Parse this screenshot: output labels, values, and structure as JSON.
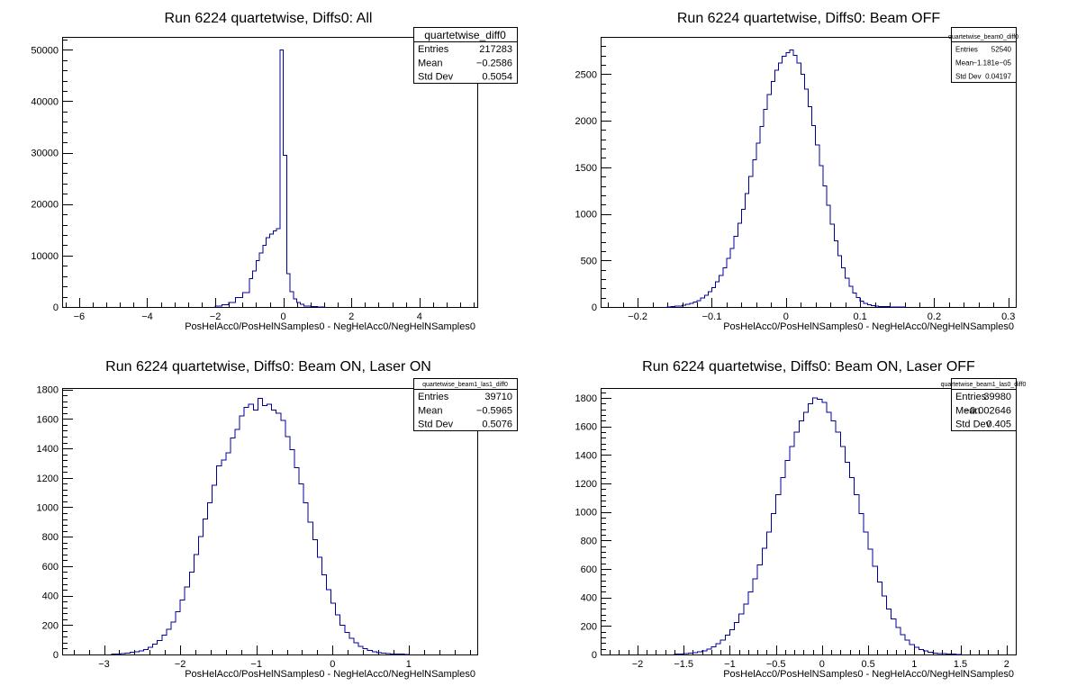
{
  "chart_data": [
    {
      "type": "histogram",
      "title": "Run 6224 quartetwise, Diffs0: All",
      "xlabel": "PosHelAcc0/PosHelNSamples0 - NegHelAcc0/NegHelNSamples0",
      "ylabel": "",
      "xlim": [
        -6.5,
        5.7
      ],
      "ylim": [
        0,
        52500
      ],
      "xticks": [
        -6,
        -4,
        -2,
        0,
        2,
        4
      ],
      "yticks": [
        0,
        10000,
        20000,
        30000,
        40000,
        50000
      ],
      "stats": {
        "name": "quartetwise_diff0",
        "entries": "217283",
        "mean": "−0.2586",
        "std_dev": "0.5054"
      },
      "bins": {
        "edges": [
          -2.0,
          -1.8,
          -1.6,
          -1.4,
          -1.2,
          -1.0,
          -0.9,
          -0.8,
          -0.7,
          -0.6,
          -0.5,
          -0.4,
          -0.3,
          -0.2,
          -0.1,
          0.0,
          0.1,
          0.2,
          0.3,
          0.4,
          0.5,
          0.6,
          0.8,
          1.0,
          1.2
        ],
        "counts": [
          150,
          400,
          900,
          1800,
          2800,
          5500,
          7000,
          9000,
          10500,
          12000,
          13500,
          14200,
          14800,
          15200,
          50000,
          29500,
          6500,
          3000,
          1600,
          900,
          500,
          200,
          80,
          30
        ]
      }
    },
    {
      "type": "histogram",
      "title": "Run 6224 quartetwise, Diffs0: Beam OFF",
      "xlabel": "PosHelAcc0/PosHelNSamples0 - NegHelAcc0/NegHelNSamples0",
      "ylabel": "",
      "xlim": [
        -0.25,
        0.31
      ],
      "ylim": [
        0,
        2900
      ],
      "xticks": [
        -0.2,
        -0.1,
        0,
        0.1,
        0.2,
        0.3
      ],
      "yticks": [
        0,
        500,
        1000,
        1500,
        2000,
        2500
      ],
      "stats": {
        "name": "quartetwise_beam0_diff0",
        "entries": "52540",
        "mean": "−1.181e−05",
        "std_dev": "0.04197"
      },
      "bins": {
        "lo": -0.16,
        "width": 0.005,
        "counts": [
          2,
          4,
          8,
          12,
          18,
          28,
          40,
          55,
          70,
          95,
          125,
          165,
          210,
          270,
          340,
          420,
          520,
          630,
          760,
          900,
          1050,
          1220,
          1400,
          1580,
          1760,
          1940,
          2120,
          2280,
          2420,
          2540,
          2620,
          2690,
          2730,
          2760,
          2700,
          2620,
          2500,
          2340,
          2150,
          1950,
          1740,
          1520,
          1300,
          1090,
          890,
          710,
          550,
          420,
          310,
          220,
          150,
          100,
          65,
          40,
          25,
          15,
          10,
          6,
          4,
          3,
          2,
          2,
          1,
          1
        ]
      }
    },
    {
      "type": "histogram",
      "title": "Run 6224 quartetwise, Diffs0: Beam ON, Laser ON",
      "xlabel": "PosHelAcc0/PosHelNSamples0 - NegHelAcc0/NegHelNSamples0",
      "ylabel": "",
      "xlim": [
        -3.55,
        1.9
      ],
      "ylim": [
        0,
        1810
      ],
      "xticks": [
        -3,
        -2,
        -1,
        0,
        1
      ],
      "yticks": [
        0,
        200,
        400,
        600,
        800,
        1000,
        1200,
        1400,
        1600,
        1800
      ],
      "stats": {
        "name": "quartetwise_beam1_las1_diff0",
        "entries": "39710",
        "mean": "−0.5965",
        "std_dev": "0.5076"
      },
      "bins": {
        "lo": -2.9,
        "width": 0.06,
        "counts": [
          2,
          4,
          6,
          10,
          14,
          18,
          25,
          35,
          50,
          70,
          95,
          130,
          170,
          220,
          290,
          370,
          460,
          560,
          680,
          800,
          920,
          1030,
          1150,
          1280,
          1320,
          1370,
          1470,
          1530,
          1620,
          1680,
          1700,
          1660,
          1740,
          1690,
          1700,
          1660,
          1640,
          1590,
          1480,
          1390,
          1270,
          1160,
          1030,
          900,
          780,
          660,
          540,
          440,
          350,
          270,
          200,
          150,
          110,
          80,
          55,
          40,
          28,
          18,
          12,
          8,
          5,
          4,
          3,
          2,
          1
        ]
      }
    },
    {
      "type": "histogram",
      "title": "Run 6224 quartetwise, Diffs0: Beam ON, Laser OFF",
      "xlabel": "PosHelAcc0/PosHelNSamples0 - NegHelAcc0/NegHelNSamples0",
      "ylabel": "",
      "xlim": [
        -2.4,
        2.1
      ],
      "ylim": [
        0,
        1870
      ],
      "xticks": [
        -2,
        -1.5,
        -1,
        -0.5,
        0,
        0.5,
        1,
        1.5,
        2
      ],
      "yticks": [
        0,
        200,
        400,
        600,
        800,
        1000,
        1200,
        1400,
        1600,
        1800
      ],
      "stats": {
        "name": "quartetwise_beam1_las0_diff0",
        "entries": "39980",
        "mean": "−0.002646",
        "std_dev": "0.405"
      },
      "bins": {
        "lo": -1.6,
        "width": 0.05,
        "counts": [
          2,
          3,
          5,
          8,
          12,
          18,
          26,
          38,
          55,
          75,
          100,
          135,
          175,
          225,
          285,
          355,
          440,
          530,
          630,
          745,
          860,
          990,
          1120,
          1240,
          1360,
          1460,
          1560,
          1640,
          1700,
          1760,
          1800,
          1790,
          1770,
          1700,
          1640,
          1560,
          1460,
          1350,
          1240,
          1120,
          990,
          860,
          740,
          620,
          510,
          410,
          320,
          250,
          190,
          140,
          100,
          70,
          50,
          35,
          24,
          16,
          10,
          7,
          5,
          3,
          2,
          1
        ]
      }
    }
  ]
}
